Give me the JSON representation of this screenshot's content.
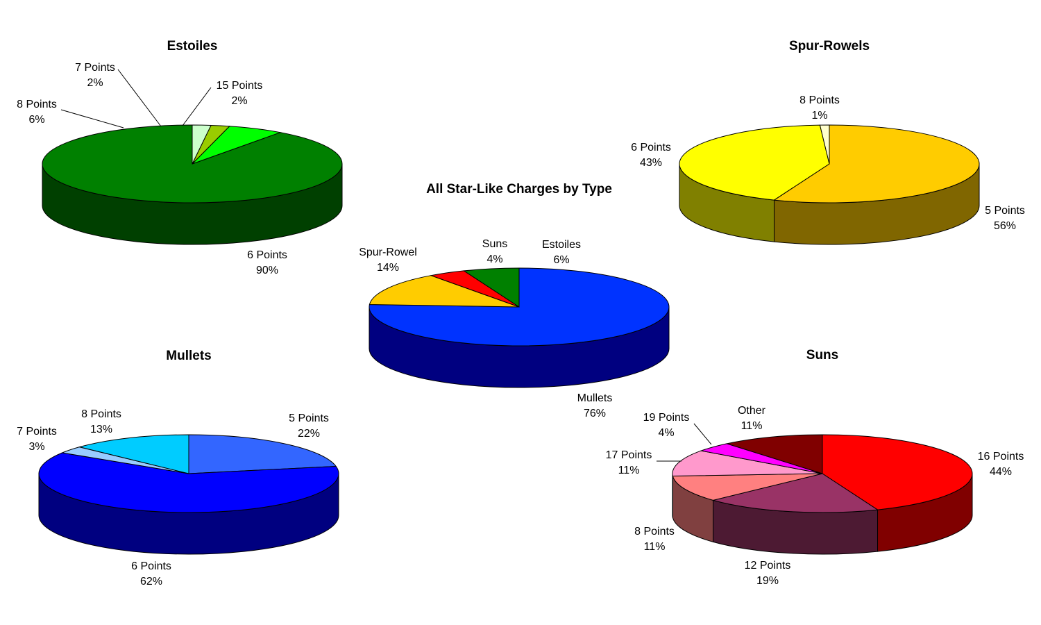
{
  "chart_data": [
    {
      "id": "estoiles",
      "type": "pie",
      "title": "Estoiles",
      "slices": [
        {
          "label": "6 Points",
          "pct": "90%",
          "value": 90,
          "color": "#008000",
          "side": "#004000"
        },
        {
          "label": "8 Points",
          "pct": "6%",
          "value": 6,
          "color": "#00ff00",
          "side": "#008000"
        },
        {
          "label": "7 Points",
          "pct": "2%",
          "value": 2,
          "color": "#99cc00",
          "side": "#4d6600"
        },
        {
          "label": "15 Points",
          "pct": "2%",
          "value": 2,
          "color": "#ccffcc",
          "side": "#668066"
        }
      ]
    },
    {
      "id": "spur-rowels",
      "type": "pie",
      "title": "Spur-Rowels",
      "slices": [
        {
          "label": "5 Points",
          "pct": "56%",
          "value": 56,
          "color": "#ffcc00",
          "side": "#806600"
        },
        {
          "label": "6 Points",
          "pct": "43%",
          "value": 43,
          "color": "#ffff00",
          "side": "#808000"
        },
        {
          "label": "8 Points",
          "pct": "1%",
          "value": 1,
          "color": "#ffffcc",
          "side": "#808066"
        }
      ]
    },
    {
      "id": "all",
      "type": "pie",
      "title": "All Star-Like Charges by Type",
      "slices": [
        {
          "label": "Mullets",
          "pct": "76%",
          "value": 76,
          "color": "#0033ff",
          "side": "#000080"
        },
        {
          "label": "Spur-Rowel",
          "pct": "14%",
          "value": 14,
          "color": "#ffcc00",
          "side": "#806600"
        },
        {
          "label": "Suns",
          "pct": "4%",
          "value": 4,
          "color": "#ff0000",
          "side": "#800000"
        },
        {
          "label": "Estoiles",
          "pct": "6%",
          "value": 6,
          "color": "#008000",
          "side": "#004000"
        }
      ]
    },
    {
      "id": "mullets",
      "type": "pie",
      "title": "Mullets",
      "slices": [
        {
          "label": "5 Points",
          "pct": "22%",
          "value": 22,
          "color": "#3366ff",
          "side": "#1a3380"
        },
        {
          "label": "6 Points",
          "pct": "62%",
          "value": 62,
          "color": "#0000ff",
          "side": "#000080"
        },
        {
          "label": "7 Points",
          "pct": "3%",
          "value": 3,
          "color": "#99ccff",
          "side": "#4d6680"
        },
        {
          "label": "8 Points",
          "pct": "13%",
          "value": 13,
          "color": "#00ccff",
          "side": "#006680"
        }
      ]
    },
    {
      "id": "suns",
      "type": "pie",
      "title": "Suns",
      "slices": [
        {
          "label": "16 Points",
          "pct": "44%",
          "value": 44,
          "color": "#ff0000",
          "side": "#800000"
        },
        {
          "label": "12 Points",
          "pct": "19%",
          "value": 19,
          "color": "#993366",
          "side": "#4d1a33"
        },
        {
          "label": "8 Points",
          "pct": "11%",
          "value": 11,
          "color": "#ff8080",
          "side": "#804040"
        },
        {
          "label": "17 Points",
          "pct": "11%",
          "value": 11,
          "color": "#ff99cc",
          "side": "#804d66"
        },
        {
          "label": "19 Points",
          "pct": "4%",
          "value": 4,
          "color": "#ff00ff",
          "side": "#800080"
        },
        {
          "label": "Other",
          "pct": "11%",
          "value": 11,
          "color": "#800000",
          "side": "#400000"
        }
      ]
    }
  ]
}
